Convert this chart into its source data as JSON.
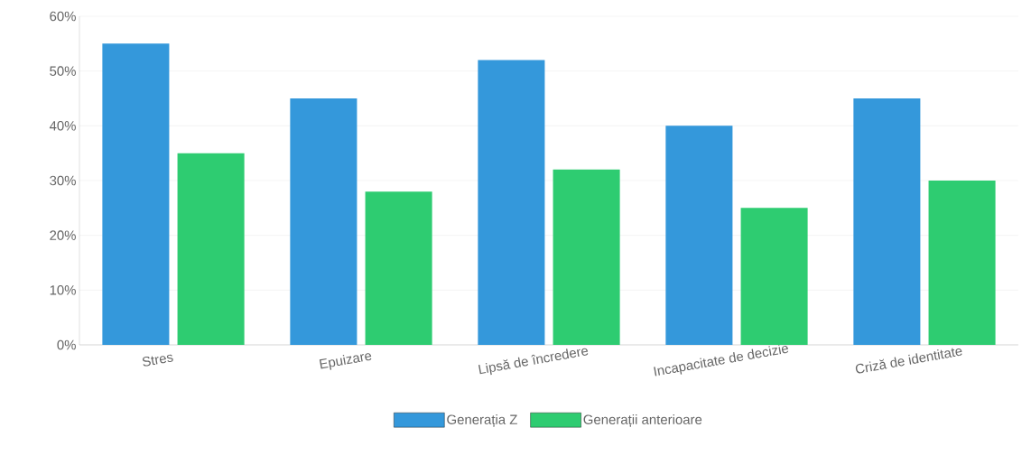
{
  "chart_data": {
    "type": "bar",
    "categories": [
      "Stres",
      "Epuizare",
      "Lipsă de încredere",
      "Incapacitate de decizie",
      "Criză de identitate"
    ],
    "series": [
      {
        "name": "Generația Z",
        "color": "#3498db",
        "values": [
          55,
          45,
          52,
          40,
          45
        ]
      },
      {
        "name": "Generații anterioare",
        "color": "#2ecc71",
        "values": [
          35,
          28,
          32,
          25,
          30
        ]
      }
    ],
    "ylim": [
      0,
      60
    ],
    "yticks": [
      {
        "value": 0,
        "label": "0%"
      },
      {
        "value": 10,
        "label": "10%"
      },
      {
        "value": 20,
        "label": "20%"
      },
      {
        "value": 30,
        "label": "30%"
      },
      {
        "value": 40,
        "label": "40%"
      },
      {
        "value": 50,
        "label": "50%"
      },
      {
        "value": 60,
        "label": "60%"
      }
    ],
    "grid": "y",
    "legend": "bottom"
  }
}
